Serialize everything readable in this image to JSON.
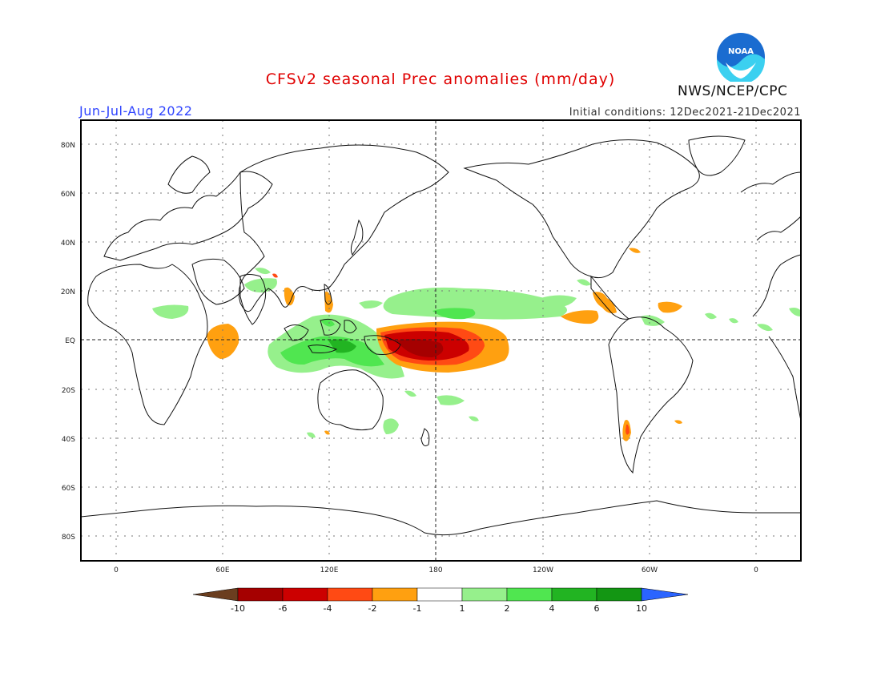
{
  "header": {
    "title": "CFSv2 seasonal Prec anomalies (mm/day)",
    "season": "Jun-Jul-Aug 2022",
    "initial_conditions": "Initial conditions: 12Dec2021-21Dec2021",
    "agency": "NWS/NCEP/CPC",
    "logo_text": "NOAA"
  },
  "map": {
    "lat_labels": [
      "80N",
      "60N",
      "40N",
      "20N",
      "EQ",
      "20S",
      "40S",
      "60S",
      "80S"
    ],
    "lon_labels": [
      "0",
      "60E",
      "120E",
      "180",
      "120W",
      "60W",
      "0"
    ]
  },
  "colorbar": {
    "labels": [
      "-10",
      "-6",
      "-4",
      "-2",
      "-1",
      "1",
      "2",
      "4",
      "6",
      "10"
    ],
    "colors": [
      "#6b3e1f",
      "#a50000",
      "#cc0000",
      "#ff4a14",
      "#ffa010",
      "#ffffff",
      "#96f08c",
      "#50e650",
      "#22b422",
      "#139613",
      "#2a64ff"
    ]
  }
}
